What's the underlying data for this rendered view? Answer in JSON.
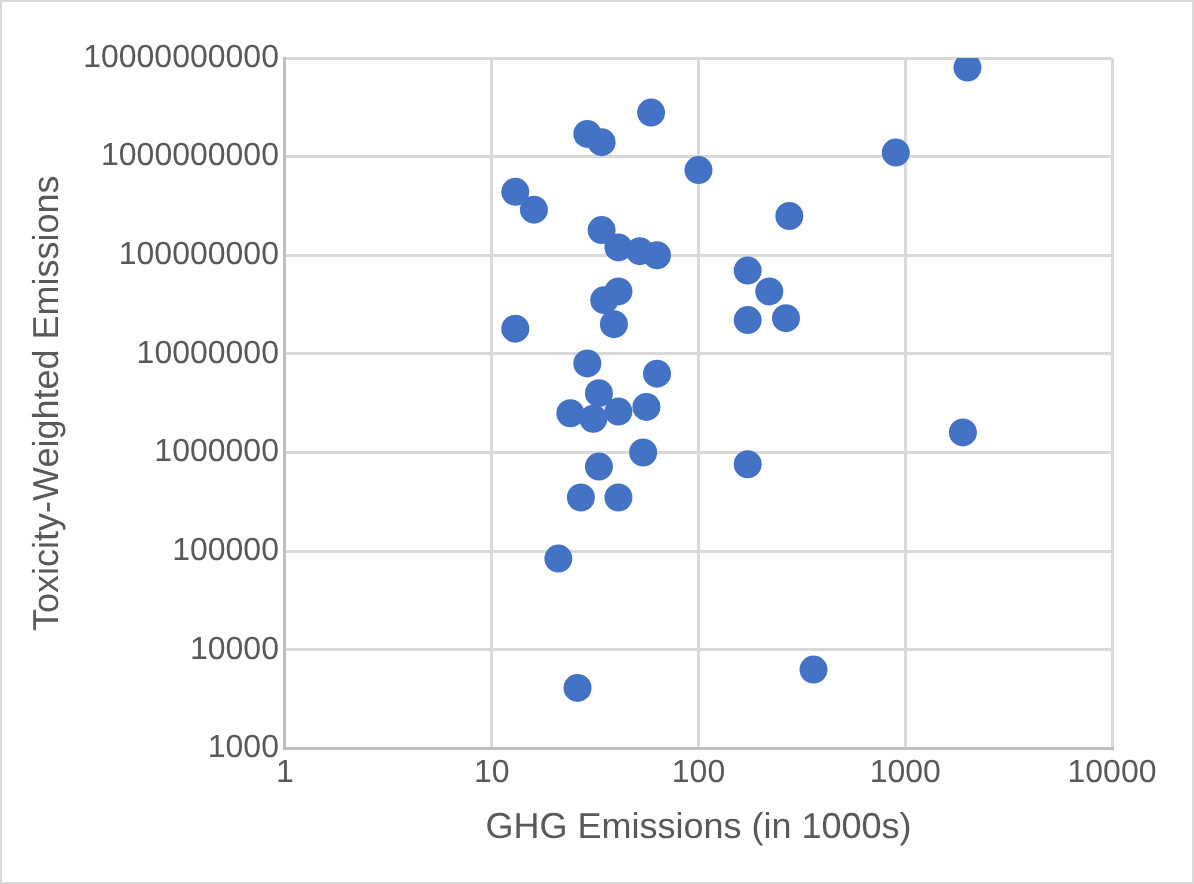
{
  "chart_data": {
    "type": "scatter",
    "xlabel": "GHG Emissions (in 1000s)",
    "ylabel": "Toxicity-Weighted Emissions",
    "log": "xy",
    "grid": true,
    "marker": "circle",
    "legend": false,
    "xlim": [
      1,
      10000
    ],
    "xticks": [
      1,
      10,
      100,
      1000,
      10000
    ],
    "ylim": [
      1000,
      10000000000
    ],
    "yticks": [
      1000,
      10000,
      100000,
      1000000,
      10000000,
      100000000,
      1000000000,
      10000000000
    ],
    "series": [
      {
        "color": "#4472c4",
        "x": [
          2000,
          900,
          59,
          29,
          34,
          100,
          13,
          16,
          275,
          34,
          41,
          52,
          63,
          173,
          220,
          173,
          265,
          41,
          35,
          13,
          39,
          29,
          63,
          33,
          24,
          31,
          41,
          56,
          54,
          33,
          27,
          41,
          21,
          26,
          360,
          173,
          1900
        ],
        "values": [
          8000000000,
          1100000000,
          2800000000,
          1700000000,
          1400000000,
          730000000,
          440000000,
          290000000,
          250000000,
          180000000,
          120000000,
          110000000,
          100000000,
          70000000,
          43000000,
          22000000,
          23000000,
          43000000,
          35000000,
          18000000,
          20000000,
          8000000,
          6300000,
          4000000,
          2500000,
          2200000,
          2600000,
          2900000,
          1000000,
          720000,
          350000,
          350000,
          84000,
          4100,
          6300,
          760000,
          1600000
        ]
      }
    ]
  }
}
